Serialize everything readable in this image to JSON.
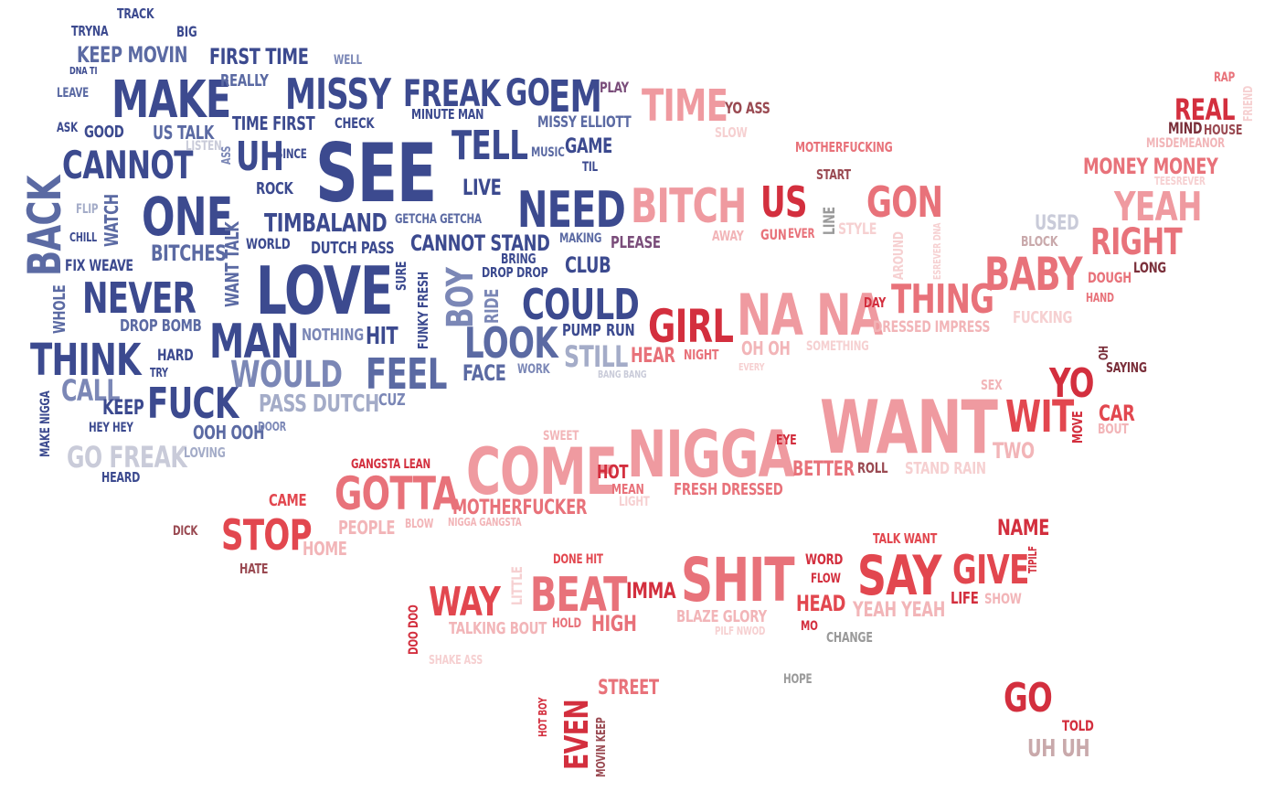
{
  "palette": {
    "navy": "#3c4a8f",
    "slate": "#5b6aa3",
    "steel": "#7b87b6",
    "lavender": "#a4acc8",
    "mist": "#c9cbd9",
    "grape": "#7a4d7a",
    "maroon": "#7a2f3a",
    "wine": "#9a4a52",
    "crimson": "#d32f3e",
    "red": "#e2474f",
    "coral": "#e8727a",
    "rose": "#ef9aa0",
    "blush": "#f2b5b8",
    "pale": "#f6d0d1",
    "dust": "#c9a9ab",
    "gray": "#9a9a9a"
  },
  "words": [
    "TRACK",
    "TRYNA",
    "BIG",
    "KEEP MOVIN",
    "FIRST TIME",
    "WELL",
    "DNA TI",
    "MAKE",
    "REALLY",
    "MISSY",
    "FREAK",
    "GO",
    "EM",
    "PLAY",
    "LEAVE",
    "ASK",
    "GOOD",
    "US TALK",
    "TIME FIRST",
    "CHECK",
    "MINUTE MAN",
    "MISSY ELLIOTT",
    "TIME",
    "YO ASS",
    "LISTEN",
    "TELL",
    "MUSIC",
    "GAME",
    "SLOW",
    "CANNOT",
    "UH",
    "SINCE",
    "SEE",
    "TIL",
    "MOTHERFUCKING",
    "ASS",
    "LIVE",
    "START",
    "BACK",
    "ROCK",
    "FLIP",
    "WATCH",
    "ONE",
    "BITCH",
    "US",
    "GON",
    "TIMBALAND",
    "GETCHA GETCHA",
    "NEED",
    "LINE",
    "CHILL",
    "WANT TALK",
    "WORLD",
    "DUTCH PASS",
    "CANNOT STAND",
    "MAKING",
    "AWAY",
    "GUN",
    "EVER",
    "STYLE",
    "BITCHES",
    "PLEASE",
    "BRING",
    "DROP DROP",
    "FIX WEAVE",
    "CLUB",
    "LOVE",
    "SURE",
    "FUNKY FRESH",
    "BOY",
    "RIDE",
    "AROUND",
    "NEVER",
    "COULD",
    "WHOLE",
    "NA NA",
    "DROP BOMB",
    "GIRL",
    "MAN",
    "NOTHING",
    "HIT",
    "PUMP",
    "RUN",
    "LOOK",
    "OH OH",
    "SOMETHING",
    "THINK",
    "HARD",
    "STILL",
    "HEAR",
    "NIGHT",
    "TRY",
    "WOULD",
    "FEEL",
    "FACE",
    "WORK",
    "BANG BANG",
    "EVERY",
    "CALL",
    "KEEP",
    "FUCK",
    "PASS DUTCH",
    "CUZ",
    "HEY HEY",
    "OOH OOH",
    "DOOR",
    "MAKE NIGGA",
    "GO FREAK",
    "LOVING",
    "HEARD",
    "DAY",
    "THING",
    "DRESSED IMPRESS",
    "YEAH",
    "RIGHT",
    "BABY",
    "USED",
    "BLOCK",
    "MONEY MONEY",
    "REAL",
    "MIND",
    "HOUSE",
    "MISDEMEANOR",
    "RAP",
    "FRIEND",
    "DOUGH",
    "LONG",
    "HAND",
    "FUCKING",
    "OH",
    "SAYING",
    "YO",
    "WIT",
    "SEX",
    "CAR",
    "BOUT",
    "MOVE",
    "TWO",
    "WANT",
    "NIGGA",
    "EYE",
    "COME",
    "SWEET",
    "HOT",
    "MEAN",
    "LIGHT",
    "BETTER",
    "ROLL",
    "STAND RAIN",
    "FRESH DRESSED",
    "GOTTA",
    "GANGSTA LEAN",
    "MOTHERFUCKER",
    "NIGGA GANGSTA",
    "CAME",
    "STOP",
    "HOME",
    "PEOPLE",
    "BLOW",
    "DICK",
    "HATE",
    "TALK WANT",
    "NAME",
    "DONE HIT",
    "WORD",
    "FLOW",
    "SAY",
    "GIVE",
    "TIPILF",
    "LIFE",
    "SHOW",
    "WAY",
    "BEAT",
    "IMMA",
    "SHIT",
    "HEAD",
    "YEAH YEAH",
    "LITTLE",
    "DOO DOO",
    "TALKING BOUT",
    "HOLD",
    "HIGH",
    "BLAZE GLORY",
    "PILF NWOD",
    "MO",
    "CHANGE",
    "SHAKE ASS",
    "HOPE",
    "STREET",
    "HOT BOY",
    "EVEN",
    "MOVIN KEEP",
    "GO",
    "TOLD",
    "UH UH",
    "TEESREVER",
    "ESREVER DNA"
  ]
}
